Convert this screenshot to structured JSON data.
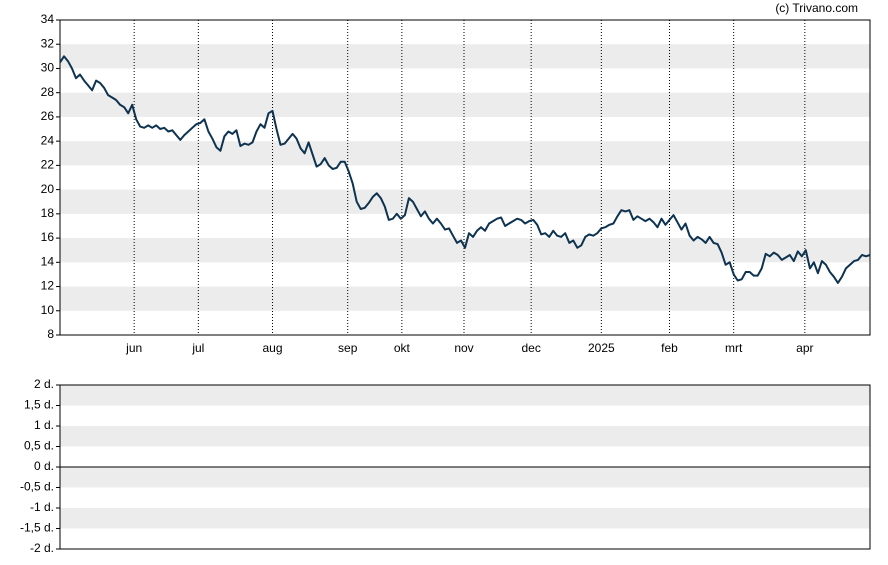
{
  "credit": "(c) Trivano.com",
  "chart_data": [
    {
      "type": "line",
      "ylim": [
        8,
        34
      ],
      "yticks": [
        8,
        10,
        12,
        14,
        16,
        18,
        20,
        22,
        24,
        26,
        28,
        30,
        32,
        34
      ],
      "xlim": [
        0,
        202
      ],
      "xticks": [
        {
          "value": 18.5,
          "label": "jun"
        },
        {
          "value": 34.5,
          "label": "jul"
        },
        {
          "value": 53,
          "label": "aug"
        },
        {
          "value": 71.75,
          "label": "sep"
        },
        {
          "value": 85.25,
          "label": "okt"
        },
        {
          "value": 100.75,
          "label": "nov"
        },
        {
          "value": 117.5,
          "label": "dec"
        },
        {
          "value": 135,
          "label": "2025"
        },
        {
          "value": 152,
          "label": "feb"
        },
        {
          "value": 168,
          "label": "mrt"
        },
        {
          "value": 185.75,
          "label": "apr"
        }
      ],
      "grid": true,
      "series": [
        {
          "color": "#0d3350",
          "values": [
            30.5,
            31,
            30.6,
            30,
            29.2,
            29.5,
            29,
            28.6,
            28.2,
            29,
            28.8,
            28.4,
            27.8,
            27.6,
            27.4,
            27,
            26.8,
            26.3,
            27,
            25.8,
            25.2,
            25.1,
            25.3,
            25.1,
            25.3,
            25,
            25.1,
            24.8,
            24.9,
            24.5,
            24.1,
            24.5,
            24.8,
            25.1,
            25.4,
            25.5,
            25.8,
            24.8,
            24.2,
            23.5,
            23.2,
            24.4,
            24.8,
            24.6,
            24.9,
            23.6,
            23.8,
            23.7,
            23.9,
            24.8,
            25.4,
            25.1,
            26.3,
            26.5,
            25,
            23.7,
            23.8,
            24.2,
            24.6,
            24.2,
            23.4,
            23,
            23.9,
            22.9,
            21.9,
            22.1,
            22.6,
            22,
            21.7,
            21.8,
            22.3,
            22.3,
            21.5,
            20.5,
            19,
            18.4,
            18.5,
            18.9,
            19.4,
            19.7,
            19.3,
            18.6,
            17.5,
            17.6,
            18,
            17.6,
            17.9,
            19.3,
            19,
            18.4,
            17.8,
            18.2,
            17.6,
            17.2,
            17.6,
            17.2,
            16.7,
            16.8,
            16.2,
            15.6,
            15.8,
            15.2,
            16.4,
            16.1,
            16.6,
            16.9,
            16.6,
            17.2,
            17.4,
            17.6,
            17.7,
            17,
            17.2,
            17.4,
            17.6,
            17.5,
            17.2,
            17.4,
            17.5,
            17.1,
            16.3,
            16.4,
            16.1,
            16.6,
            16.2,
            16.1,
            16.4,
            15.6,
            15.8,
            15.2,
            15.4,
            16.1,
            16.3,
            16.2,
            16.4,
            16.8,
            16.9,
            17.1,
            17.2,
            17.8,
            18.3,
            18.2,
            18.3,
            17.5,
            17.8,
            17.6,
            17.4,
            17.6,
            17.3,
            16.9,
            17.6,
            17.1,
            17.5,
            17.9,
            17.3,
            16.7,
            17.2,
            16.2,
            15.8,
            16.1,
            15.9,
            15.6,
            16.1,
            15.6,
            15.5,
            14.8,
            13.8,
            14,
            13,
            12.5,
            12.6,
            13.2,
            13.2,
            12.9,
            12.9,
            13.5,
            14.7,
            14.5,
            14.8,
            14.6,
            14.2,
            14.4,
            14.6,
            14.1,
            14.9,
            14.5,
            15,
            13.5,
            14,
            13.1,
            14.1,
            13.8,
            13.2,
            12.8,
            12.3,
            12.8,
            13.5,
            13.8,
            14.1,
            14.2,
            14.6,
            14.5,
            14.6
          ]
        }
      ]
    },
    {
      "type": "line",
      "ylim": [
        -2,
        2
      ],
      "yticks": [
        {
          "value": -2,
          "label": "-2 d."
        },
        {
          "value": -1.5,
          "label": "-1,5 d."
        },
        {
          "value": -1,
          "label": "-1 d."
        },
        {
          "value": -0.5,
          "label": "-0,5 d."
        },
        {
          "value": 0,
          "label": "0 d."
        },
        {
          "value": 0.5,
          "label": "0,5 d."
        },
        {
          "value": 1,
          "label": "1 d."
        },
        {
          "value": 1.5,
          "label": "1,5 d."
        },
        {
          "value": 2,
          "label": "2 d."
        }
      ],
      "grid": true,
      "series": []
    }
  ]
}
